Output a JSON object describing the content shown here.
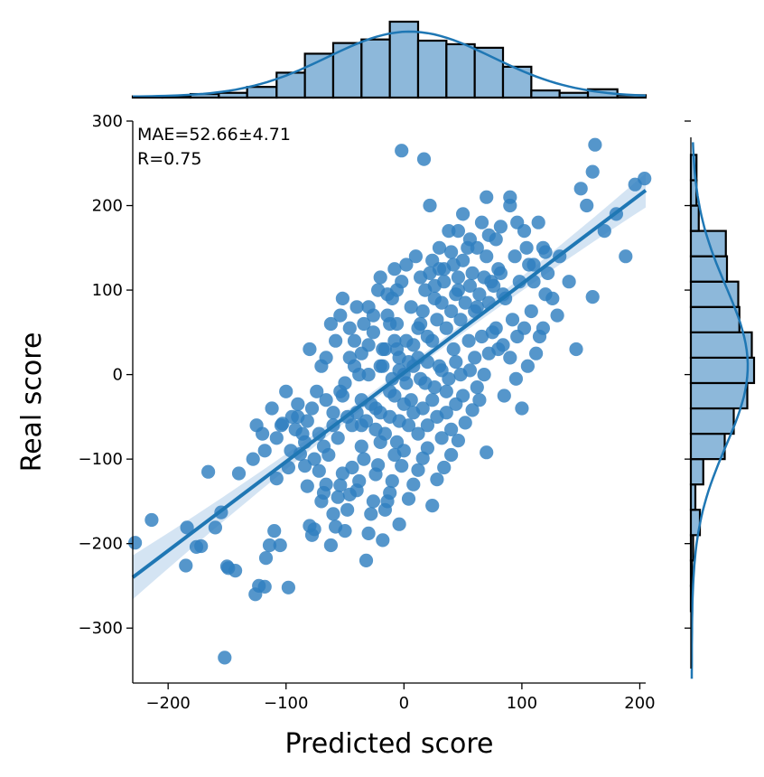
{
  "chart_data": {
    "type": "scatter",
    "title": "",
    "xlabel": "Predicted score",
    "ylabel": "Real score",
    "xlim": [
      -230,
      205
    ],
    "ylim": [
      -365,
      300
    ],
    "x_ticks": [
      -200,
      -100,
      0,
      100,
      200
    ],
    "y_ticks": [
      -300,
      -200,
      -100,
      0,
      100,
      200,
      300
    ],
    "annotations": [
      "MAE=52.66±4.71",
      "R=0.75"
    ],
    "grid": false,
    "legend": "none",
    "colors": {
      "points": "#2f7fbf",
      "regression_line": "#1f77b4",
      "confidence_band": "#c6dbef",
      "hist_fill": "#8db8da",
      "hist_edge": "#000000"
    },
    "regression": {
      "x": [
        -230,
        205
      ],
      "y": [
        -240,
        218
      ]
    },
    "marginal_x_hist": {
      "bin_edges": [
        -230,
        -205,
        -181,
        -157,
        -133,
        -108,
        -84,
        -60,
        -36,
        -12,
        12,
        36,
        60,
        84,
        108,
        132,
        156,
        181,
        205
      ],
      "counts": [
        1,
        1,
        3,
        4,
        9,
        21,
        37,
        46,
        49,
        64,
        48,
        45,
        42,
        26,
        6,
        4,
        7,
        2
      ]
    },
    "marginal_y_hist": {
      "bin_edges": [
        -365,
        -340,
        -310,
        -280,
        -250,
        -220,
        -190,
        -160,
        -130,
        -100,
        -70,
        -40,
        -10,
        20,
        50,
        80,
        110,
        140,
        170,
        200,
        230,
        260,
        290
      ],
      "counts": [
        0,
        0,
        0,
        1,
        1,
        2,
        8,
        4,
        11,
        30,
        38,
        50,
        56,
        54,
        43,
        42,
        32,
        31,
        7,
        5,
        5,
        0
      ]
    },
    "points": [
      [
        -228,
        -199
      ],
      [
        -214,
        -172
      ],
      [
        -184,
        -181
      ],
      [
        -185,
        -226
      ],
      [
        -176,
        -204
      ],
      [
        -172,
        -203
      ],
      [
        -166,
        -115
      ],
      [
        -160,
        -181
      ],
      [
        -155,
        -163
      ],
      [
        -152,
        -335
      ],
      [
        -150,
        -227
      ],
      [
        -149,
        -229
      ],
      [
        -143,
        -232
      ],
      [
        -140,
        -117
      ],
      [
        -126,
        -260
      ],
      [
        -123,
        -250
      ],
      [
        -118,
        -251
      ],
      [
        -117,
        -217
      ],
      [
        -114,
        -202
      ],
      [
        -110,
        -185
      ],
      [
        -108,
        -123
      ],
      [
        -105,
        -202
      ],
      [
        -98,
        -252
      ],
      [
        -103,
        -58
      ],
      [
        -88,
        -94
      ],
      [
        -84,
        -108
      ],
      [
        -82,
        -132
      ],
      [
        -80,
        -179
      ],
      [
        -78,
        -190
      ],
      [
        -76,
        -183
      ],
      [
        -72,
        -114
      ],
      [
        -70,
        -150
      ],
      [
        -68,
        -140
      ],
      [
        -66,
        -130
      ],
      [
        -64,
        -95
      ],
      [
        -62,
        -202
      ],
      [
        -60,
        -165
      ],
      [
        -58,
        -180
      ],
      [
        -56,
        -145
      ],
      [
        -54,
        -131
      ],
      [
        -52,
        -117
      ],
      [
        -50,
        -185
      ],
      [
        -48,
        -160
      ],
      [
        -46,
        -142
      ],
      [
        -44,
        -110
      ],
      [
        -40,
        -137
      ],
      [
        -38,
        -126
      ],
      [
        -36,
        -60
      ],
      [
        -34,
        -100
      ],
      [
        -32,
        -220
      ],
      [
        -30,
        -188
      ],
      [
        -28,
        -165
      ],
      [
        -26,
        -150
      ],
      [
        -24,
        -118
      ],
      [
        -22,
        -107
      ],
      [
        -20,
        -80
      ],
      [
        -18,
        -196
      ],
      [
        -16,
        -160
      ],
      [
        -14,
        -150
      ],
      [
        -12,
        -140
      ],
      [
        -10,
        -126
      ],
      [
        -8,
        -95
      ],
      [
        -6,
        -80
      ],
      [
        -4,
        -177
      ],
      [
        -2,
        -108
      ],
      [
        0,
        -90
      ],
      [
        4,
        -147
      ],
      [
        8,
        -130
      ],
      [
        12,
        -113
      ],
      [
        16,
        -99
      ],
      [
        20,
        -87
      ],
      [
        24,
        -155
      ],
      [
        28,
        -124
      ],
      [
        34,
        -110
      ],
      [
        40,
        -95
      ],
      [
        46,
        -78
      ],
      [
        52,
        -57
      ],
      [
        58,
        -42
      ],
      [
        64,
        -30
      ],
      [
        70,
        -92
      ],
      [
        -125,
        -60
      ],
      [
        -120,
        -70
      ],
      [
        -112,
        -40
      ],
      [
        -100,
        -20
      ],
      [
        -95,
        -50
      ],
      [
        -90,
        -35
      ],
      [
        -86,
        -70
      ],
      [
        -80,
        30
      ],
      [
        -74,
        -20
      ],
      [
        -70,
        10
      ],
      [
        -66,
        20
      ],
      [
        -62,
        60
      ],
      [
        -58,
        40
      ],
      [
        -54,
        70
      ],
      [
        -50,
        -10
      ],
      [
        -46,
        20
      ],
      [
        -42,
        40
      ],
      [
        -38,
        0
      ],
      [
        -34,
        60
      ],
      [
        -30,
        80
      ],
      [
        -26,
        50
      ],
      [
        -22,
        100
      ],
      [
        -18,
        30
      ],
      [
        -14,
        70
      ],
      [
        -10,
        90
      ],
      [
        -6,
        60
      ],
      [
        -2,
        110
      ],
      [
        2,
        40
      ],
      [
        6,
        80
      ],
      [
        10,
        140
      ],
      [
        14,
        60
      ],
      [
        18,
        100
      ],
      [
        22,
        120
      ],
      [
        26,
        90
      ],
      [
        30,
        150
      ],
      [
        34,
        110
      ],
      [
        38,
        170
      ],
      [
        42,
        130
      ],
      [
        46,
        100
      ],
      [
        50,
        190
      ],
      [
        54,
        150
      ],
      [
        58,
        120
      ],
      [
        62,
        80
      ],
      [
        66,
        180
      ],
      [
        70,
        140
      ],
      [
        74,
        110
      ],
      [
        78,
        160
      ],
      [
        82,
        120
      ],
      [
        86,
        90
      ],
      [
        90,
        200
      ],
      [
        94,
        140
      ],
      [
        98,
        110
      ],
      [
        102,
        170
      ],
      [
        106,
        130
      ],
      [
        110,
        110
      ],
      [
        114,
        180
      ],
      [
        118,
        150
      ],
      [
        122,
        120
      ],
      [
        126,
        90
      ],
      [
        130,
        70
      ],
      [
        -2,
        265
      ],
      [
        17,
        255
      ],
      [
        22,
        200
      ],
      [
        70,
        210
      ],
      [
        90,
        210
      ],
      [
        162,
        272
      ],
      [
        160,
        240
      ],
      [
        155,
        200
      ],
      [
        150,
        220
      ],
      [
        170,
        170
      ],
      [
        180,
        190
      ],
      [
        188,
        140
      ],
      [
        196,
        225
      ],
      [
        204,
        232
      ],
      [
        140,
        110
      ],
      [
        146,
        30
      ],
      [
        160,
        92
      ],
      [
        120,
        95
      ],
      [
        115,
        45
      ],
      [
        105,
        10
      ],
      [
        100,
        -40
      ],
      [
        95,
        -5
      ],
      [
        90,
        20
      ],
      [
        85,
        -25
      ],
      [
        80,
        30
      ],
      [
        75,
        50
      ],
      [
        68,
        0
      ],
      [
        60,
        20
      ],
      [
        55,
        40
      ],
      [
        48,
        0
      ],
      [
        42,
        30
      ],
      [
        36,
        -20
      ],
      [
        30,
        10
      ],
      [
        24,
        40
      ],
      [
        18,
        -10
      ],
      [
        12,
        20
      ],
      [
        6,
        -30
      ],
      [
        0,
        0
      ],
      [
        -6,
        30
      ],
      [
        -12,
        -20
      ],
      [
        -18,
        10
      ],
      [
        -24,
        -40
      ],
      [
        -30,
        0
      ],
      [
        -36,
        -30
      ],
      [
        -42,
        10
      ],
      [
        -48,
        -50
      ],
      [
        -54,
        -20
      ],
      [
        -60,
        -60
      ],
      [
        -66,
        -30
      ],
      [
        -72,
        -70
      ],
      [
        -78,
        -40
      ],
      [
        -84,
        -80
      ],
      [
        -90,
        -50
      ],
      [
        -96,
        -90
      ],
      [
        -104,
        -60
      ],
      [
        -12,
        60
      ],
      [
        -8,
        40
      ],
      [
        -4,
        20
      ],
      [
        4,
        15
      ],
      [
        8,
        35
      ],
      [
        12,
        55
      ],
      [
        16,
        75
      ],
      [
        20,
        45
      ],
      [
        28,
        65
      ],
      [
        32,
        85
      ],
      [
        36,
        55
      ],
      [
        40,
        75
      ],
      [
        44,
        95
      ],
      [
        48,
        65
      ],
      [
        52,
        85
      ],
      [
        56,
        105
      ],
      [
        60,
        75
      ],
      [
        64,
        95
      ],
      [
        68,
        115
      ],
      [
        72,
        85
      ],
      [
        76,
        105
      ],
      [
        80,
        125
      ],
      [
        84,
        95
      ],
      [
        -20,
        10
      ],
      [
        -16,
        30
      ],
      [
        -10,
        -5
      ],
      [
        -4,
        5
      ],
      [
        2,
        -10
      ],
      [
        8,
        10
      ],
      [
        14,
        -5
      ],
      [
        20,
        15
      ],
      [
        26,
        -15
      ],
      [
        32,
        5
      ],
      [
        38,
        -5
      ],
      [
        44,
        15
      ],
      [
        50,
        -25
      ],
      [
        56,
        5
      ],
      [
        62,
        -15
      ],
      [
        66,
        45
      ],
      [
        72,
        25
      ],
      [
        78,
        55
      ],
      [
        84,
        35
      ],
      [
        92,
        65
      ],
      [
        96,
        45
      ],
      [
        102,
        55
      ],
      [
        108,
        75
      ],
      [
        112,
        25
      ],
      [
        118,
        55
      ],
      [
        -128,
        -100
      ],
      [
        -118,
        -90
      ],
      [
        -108,
        -75
      ],
      [
        -98,
        -110
      ],
      [
        -92,
        -65
      ],
      [
        -82,
        -55
      ],
      [
        -76,
        -100
      ],
      [
        -68,
        -85
      ],
      [
        -60,
        -45
      ],
      [
        -56,
        -75
      ],
      [
        -52,
        -25
      ],
      [
        -44,
        -60
      ],
      [
        -40,
        -45
      ],
      [
        -36,
        -85
      ],
      [
        -32,
        -55
      ],
      [
        -28,
        -35
      ],
      [
        -24,
        -65
      ],
      [
        -20,
        -45
      ],
      [
        -16,
        -70
      ],
      [
        -12,
        -50
      ],
      [
        -8,
        -25
      ],
      [
        -4,
        -55
      ],
      [
        0,
        -35
      ],
      [
        4,
        -60
      ],
      [
        8,
        -45
      ],
      [
        12,
        -70
      ],
      [
        16,
        -40
      ],
      [
        20,
        -60
      ],
      [
        24,
        -30
      ],
      [
        28,
        -50
      ],
      [
        32,
        -75
      ],
      [
        36,
        -45
      ],
      [
        40,
        -65
      ],
      [
        44,
        -35
      ],
      [
        -8,
        125
      ],
      [
        2,
        130
      ],
      [
        14,
        115
      ],
      [
        24,
        135
      ],
      [
        30,
        125
      ],
      [
        40,
        145
      ],
      [
        50,
        135
      ],
      [
        62,
        150
      ],
      [
        72,
        165
      ],
      [
        82,
        175
      ],
      [
        96,
        180
      ],
      [
        104,
        150
      ],
      [
        110,
        130
      ],
      [
        120,
        145
      ],
      [
        132,
        140
      ],
      [
        46,
        170
      ],
      [
        56,
        160
      ],
      [
        26,
        105
      ],
      [
        34,
        125
      ],
      [
        46,
        115
      ],
      [
        -36,
        25
      ],
      [
        -40,
        80
      ],
      [
        -46,
        55
      ],
      [
        -52,
        90
      ],
      [
        -20,
        115
      ],
      [
        -26,
        70
      ],
      [
        -30,
        35
      ],
      [
        -6,
        100
      ],
      [
        -14,
        95
      ]
    ]
  }
}
